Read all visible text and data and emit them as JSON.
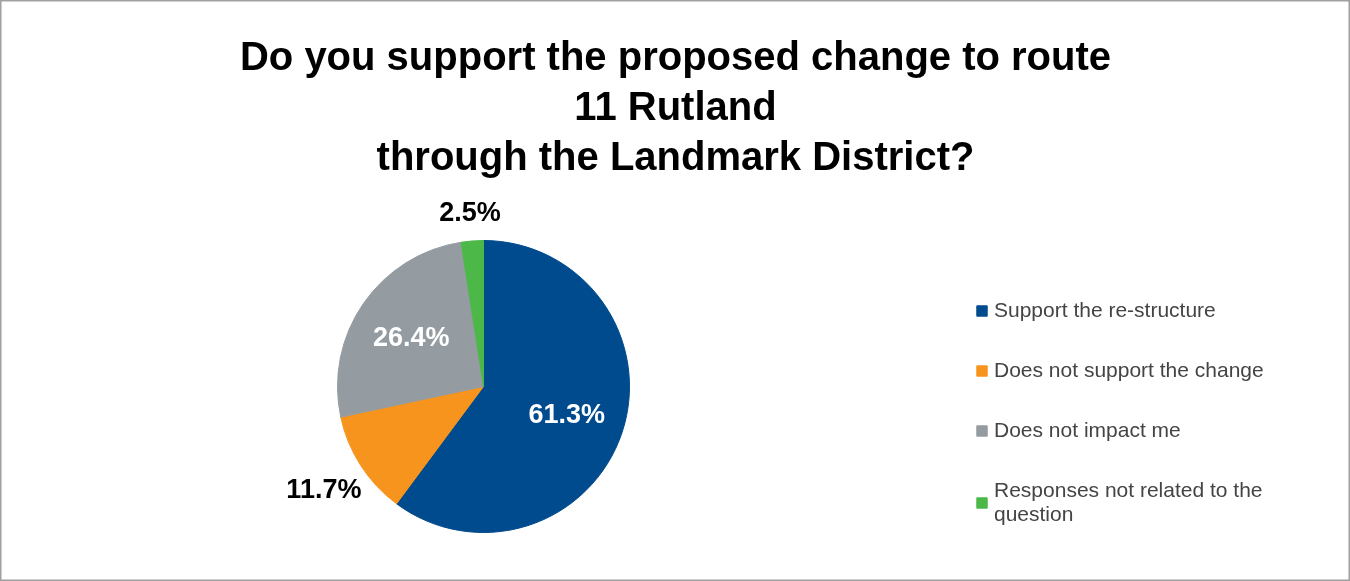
{
  "chart_data": {
    "type": "pie",
    "title": "Do you support the proposed change to route\n11 Rutland\nthrough the Landmark District?",
    "categories": [
      "Support the re-structure",
      "Does not support the change",
      "Does not impact me",
      "Responses not related to the question"
    ],
    "values": [
      61.3,
      11.7,
      26.4,
      2.5
    ],
    "value_labels": [
      "61.3%",
      "11.7%",
      "26.4%",
      "2.5%"
    ],
    "colors": [
      "#004b8d",
      "#f7941d",
      "#959ca1",
      "#4cb848"
    ],
    "legend": "right"
  }
}
